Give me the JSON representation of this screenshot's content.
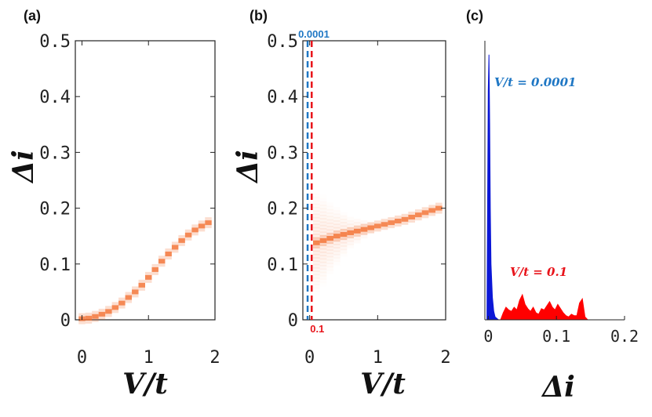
{
  "chart_data": [
    {
      "panel": "(a)",
      "type": "heatmap",
      "xlabel": "V/t",
      "ylabel": "Δi",
      "xlim": [
        -0.1,
        2.0
      ],
      "ylim": [
        0,
        0.5
      ],
      "xticks": [
        "0",
        "1",
        "2"
      ],
      "yticks": [
        "0",
        "0.1",
        "0.2",
        "0.3",
        "0.4",
        "0.5"
      ],
      "x": [
        0.0,
        0.1,
        0.2,
        0.3,
        0.4,
        0.5,
        0.6,
        0.7,
        0.8,
        0.9,
        1.0,
        1.1,
        1.2,
        1.3,
        1.4,
        1.5,
        1.6,
        1.7,
        1.8,
        1.9
      ],
      "y": [
        0.002,
        0.003,
        0.006,
        0.01,
        0.015,
        0.022,
        0.03,
        0.04,
        0.05,
        0.062,
        0.076,
        0.09,
        0.105,
        0.118,
        0.13,
        0.142,
        0.152,
        0.161,
        0.168,
        0.174
      ],
      "color": "#f26b2a"
    },
    {
      "panel": "(b)",
      "type": "heatmap",
      "xlabel": "V/t",
      "ylabel": "Δi",
      "xlim": [
        -0.1,
        2.0
      ],
      "ylim": [
        0,
        0.5
      ],
      "xticks": [
        "0",
        "1",
        "2"
      ],
      "yticks": [
        "0",
        "0.1",
        "0.2",
        "0.3",
        "0.4",
        "0.5"
      ],
      "x": [
        0.1,
        0.2,
        0.3,
        0.4,
        0.5,
        0.6,
        0.7,
        0.8,
        0.9,
        1.0,
        1.1,
        1.2,
        1.3,
        1.4,
        1.5,
        1.6,
        1.7,
        1.8,
        1.9
      ],
      "y": [
        0.138,
        0.142,
        0.146,
        0.15,
        0.153,
        0.156,
        0.159,
        0.162,
        0.165,
        0.168,
        0.171,
        0.174,
        0.177,
        0.18,
        0.184,
        0.188,
        0.192,
        0.196,
        0.2
      ],
      "spread": [
        0.09,
        0.075,
        0.06,
        0.045,
        0.035,
        0.025,
        0.018,
        0.012,
        0.008,
        0.006,
        0.005,
        0.004,
        0.004,
        0.004,
        0.004,
        0.004,
        0.004,
        0.004,
        0.004
      ],
      "color": "#f26b2a",
      "vlines": [
        {
          "x": -0.03,
          "label": "0.0001",
          "color": "#1f77c4"
        },
        {
          "x": 0.03,
          "label": "0.1",
          "color": "#e8141b"
        }
      ]
    },
    {
      "panel": "(c)",
      "type": "area",
      "xlabel": "Δi",
      "xlim": [
        -0.005,
        0.2
      ],
      "xticks": [
        "0",
        "0.1",
        "0.2"
      ],
      "series": [
        {
          "name": "V/t = 0.0001",
          "color": "#0b17d6",
          "x": [
            -0.002,
            0.0,
            0.001,
            0.002,
            0.003,
            0.004,
            0.006,
            0.008,
            0.01,
            0.015
          ],
          "y": [
            0,
            0.82,
            0.95,
            0.7,
            0.4,
            0.2,
            0.08,
            0.03,
            0.01,
            0
          ]
        },
        {
          "name": "V/t = 0.1",
          "color": "#ff0000",
          "x": [
            0.018,
            0.022,
            0.026,
            0.03,
            0.034,
            0.038,
            0.042,
            0.046,
            0.05,
            0.054,
            0.058,
            0.062,
            0.066,
            0.07,
            0.074,
            0.078,
            0.082,
            0.086,
            0.09,
            0.094,
            0.098,
            0.102,
            0.106,
            0.11,
            0.114,
            0.118,
            0.122,
            0.126,
            0.13,
            0.134,
            0.138,
            0.142,
            0.146
          ],
          "y": [
            0,
            0.025,
            0.045,
            0.035,
            0.03,
            0.045,
            0.035,
            0.07,
            0.09,
            0.055,
            0.04,
            0.03,
            0.045,
            0.025,
            0.02,
            0.04,
            0.035,
            0.05,
            0.065,
            0.045,
            0.035,
            0.055,
            0.04,
            0.025,
            0.015,
            0.01,
            0.02,
            0.015,
            0.015,
            0.06,
            0.075,
            0.01,
            0
          ]
        }
      ],
      "annotations": [
        {
          "text": "V/t = 0.0001",
          "color": "#1f77c4"
        },
        {
          "text": "V/t = 0.1",
          "color": "#e8141b"
        }
      ]
    }
  ],
  "labels": {
    "panel_a": "(a)",
    "panel_b": "(b)",
    "panel_c": "(c)",
    "xlabel_a": "V/t",
    "xlabel_b": "V/t",
    "xlabel_c": "Δi",
    "ylabel_a": "Δi",
    "ylabel_b": "Δi"
  }
}
